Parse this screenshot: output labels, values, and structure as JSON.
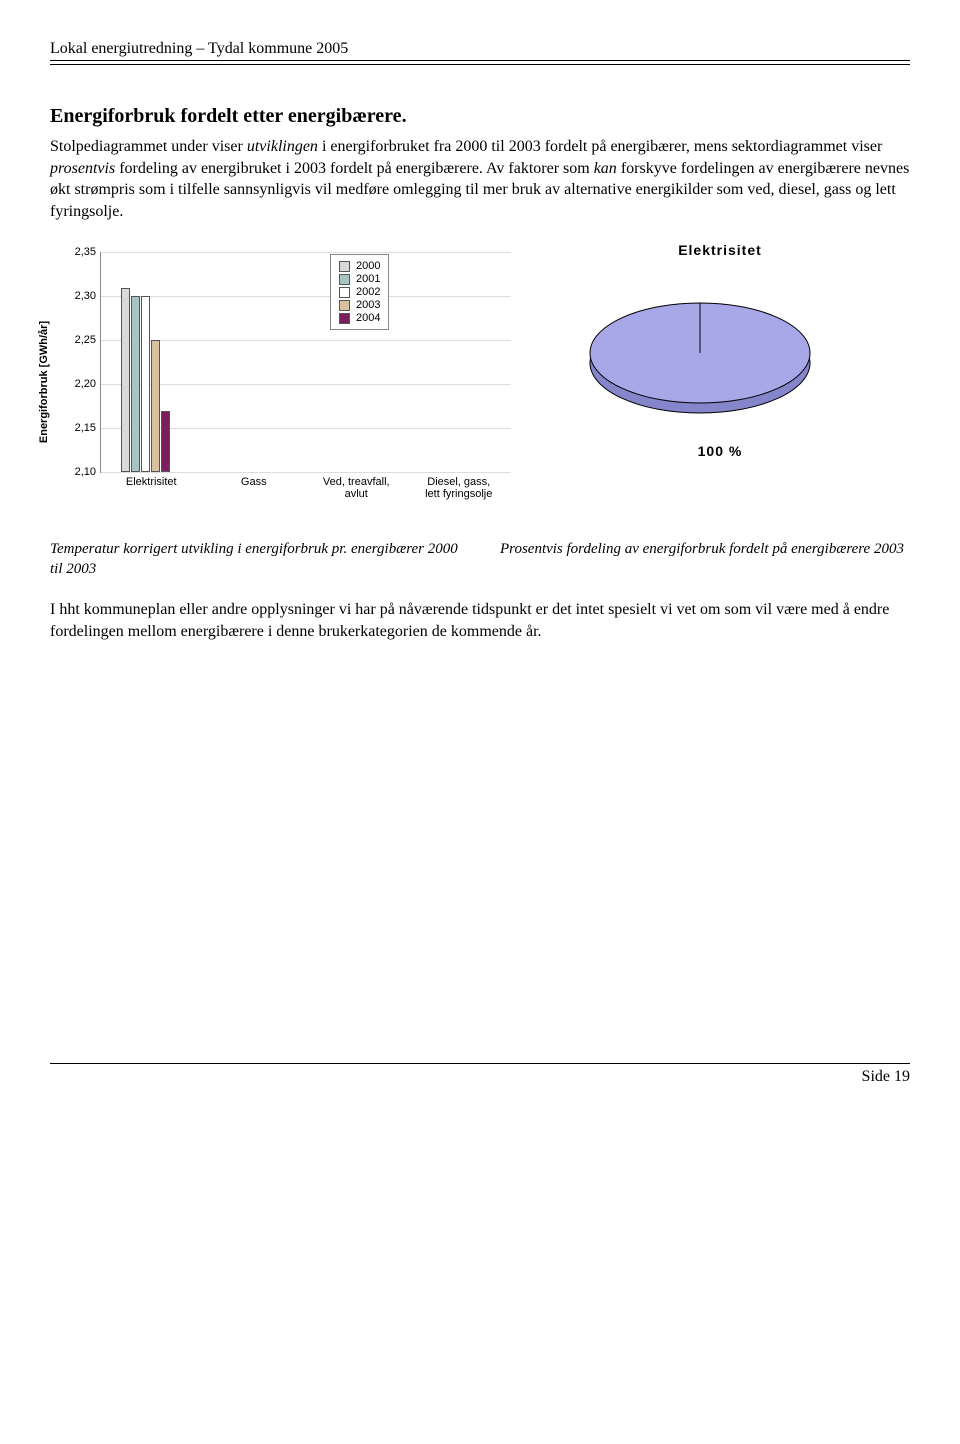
{
  "header": "Lokal energiutredning – Tydal kommune 2005",
  "section_title": "Energiforbruk fordelt etter energibærere.",
  "para1_parts": {
    "p1": "Stolpediagrammet under viser ",
    "p2": "utviklingen",
    "p3": " i energiforbruket fra 2000 til 2003 fordelt på energibærer, mens sektordiagrammet viser ",
    "p4": "prosentvis",
    "p5": " fordeling av energibruket i 2003 fordelt på energibærere. Av faktorer som ",
    "p6": "kan",
    "p7": " forskyve fordelingen av energibærere nevnes økt strømpris som i tilfelle sannsynligvis vil medføre omlegging til mer bruk av alternative energikilder som ved, diesel, gass og lett fyringsolje."
  },
  "bar_chart": {
    "type": "bar",
    "y_label": "Energiforbruk [GWh/år]",
    "categories": [
      "Elektrisitet",
      "Gass",
      "Ved, treavfall, avlut",
      "Diesel, gass, lett fyringsolje"
    ],
    "years": [
      "2000",
      "2001",
      "2002",
      "2003",
      "2004"
    ],
    "colors": [
      "#d9d9d9",
      "#a8c4c4",
      "#ffffff",
      "#d9c09f",
      "#7a1f5a"
    ],
    "values": [
      [
        2.31,
        2.3,
        2.3,
        2.25,
        2.17
      ],
      [
        null,
        null,
        null,
        null,
        null
      ],
      [
        null,
        null,
        null,
        null,
        null
      ],
      [
        null,
        null,
        null,
        null,
        null
      ]
    ],
    "ylim": [
      2.1,
      2.35
    ],
    "yticks": [
      "2,10",
      "2,15",
      "2,20",
      "2,25",
      "2,30",
      "2,35"
    ],
    "grid_color": "#dddddd",
    "border_color": "#888888",
    "bar_border": "#555555",
    "label_fontsize": 11,
    "legend_pos": "upper-center"
  },
  "pie_chart": {
    "type": "pie",
    "title": "Elektrisitet",
    "slices": [
      {
        "label": "Elektrisitet",
        "value": 100,
        "color": "#a8a8e8"
      }
    ],
    "caption": "100 %",
    "ellipse_rx": 110,
    "ellipse_ry": 50,
    "stroke": "#000000",
    "depth_color": "#8585cc"
  },
  "caption_left": "Temperatur korrigert utvikling i energiforbruk pr. energibærer 2000 til 2003",
  "caption_right": "Prosentvis fordeling av energiforbruk fordelt på energibærere 2003",
  "para2": "I hht kommuneplan eller andre opplysninger vi har på nåværende tidspunkt er det intet spesielt vi vet om som vil være med å endre fordelingen mellom energibærere i denne brukerkategorien de kommende år.",
  "footer": "Side 19"
}
